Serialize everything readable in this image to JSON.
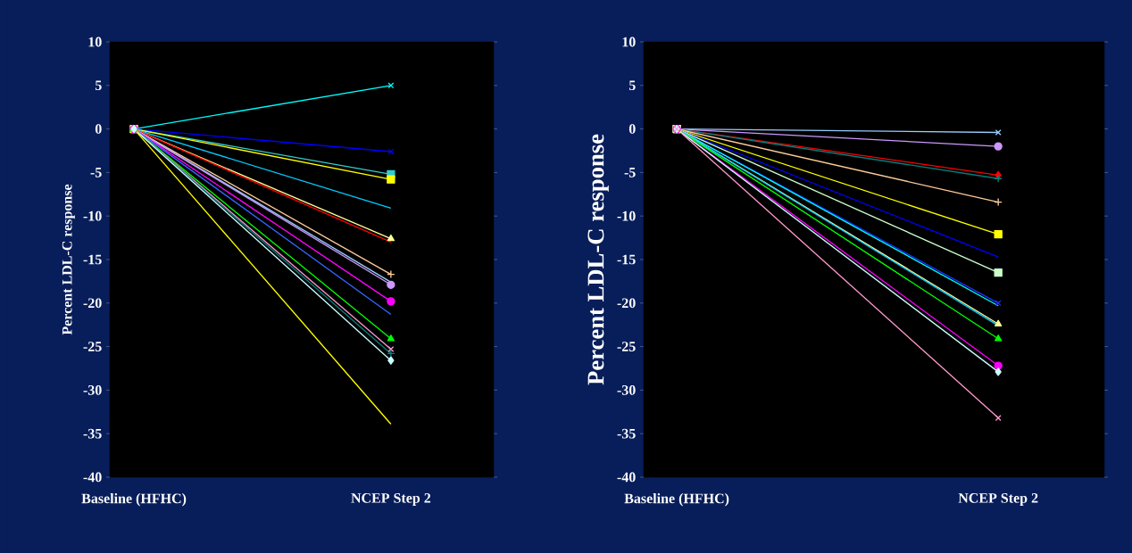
{
  "chart_data": [
    {
      "type": "line",
      "ylabel": "Percent LDL-C response",
      "categories": [
        "Baseline (HFHC)",
        "NCEP Step 2"
      ],
      "ylim": [
        -40,
        10
      ],
      "yticks": [
        -40,
        -35,
        -30,
        -25,
        -20,
        -15,
        -10,
        -5,
        0,
        5,
        10
      ],
      "series": [
        {
          "color": "#00ffff",
          "marker": "cross",
          "values": [
            0,
            5
          ]
        },
        {
          "color": "#0000ff",
          "marker": "cross",
          "values": [
            0,
            -2.6
          ]
        },
        {
          "color": "#33cccc",
          "marker": "square",
          "values": [
            0,
            -5.2
          ]
        },
        {
          "color": "#ffff00",
          "marker": "square",
          "values": [
            0,
            -5.8
          ]
        },
        {
          "color": "#00ccff",
          "marker": "none",
          "values": [
            0,
            -9.1
          ]
        },
        {
          "color": "#ffff99",
          "marker": "triangle",
          "values": [
            0,
            -12.6
          ]
        },
        {
          "color": "#ff0000",
          "marker": "none",
          "values": [
            0,
            -13.0
          ]
        },
        {
          "color": "#ffcc99",
          "marker": "plus",
          "values": [
            0,
            -16.7
          ]
        },
        {
          "color": "#99ccff",
          "marker": "none",
          "values": [
            0,
            -17.6
          ]
        },
        {
          "color": "#cc99ff",
          "marker": "circle",
          "values": [
            0,
            -17.9
          ]
        },
        {
          "color": "#ff00ff",
          "marker": "circle",
          "values": [
            0,
            -19.8
          ]
        },
        {
          "color": "#3366ff",
          "marker": "none",
          "values": [
            0,
            -21.3
          ]
        },
        {
          "color": "#00ff00",
          "marker": "triangle",
          "values": [
            0,
            -24.1
          ]
        },
        {
          "color": "#ff99cc",
          "marker": "cross",
          "values": [
            0,
            -25.3
          ]
        },
        {
          "color": "#008080",
          "marker": "plus",
          "values": [
            0,
            -25.8
          ]
        },
        {
          "color": "#ccffff",
          "marker": "diamond",
          "values": [
            0,
            -26.6
          ]
        },
        {
          "color": "#ffff00",
          "marker": "none",
          "values": [
            0,
            -33.9
          ]
        }
      ]
    },
    {
      "type": "line",
      "ylabel": "Percent LDL-C response",
      "categories": [
        "Baseline  (HFHC)",
        "NCEP Step 2"
      ],
      "ylim": [
        -40,
        10
      ],
      "yticks": [
        -40,
        -35,
        -30,
        -25,
        -20,
        -15,
        -10,
        -5,
        0,
        5,
        10
      ],
      "series": [
        {
          "color": "#99ccff",
          "marker": "cross",
          "values": [
            0,
            -0.4
          ]
        },
        {
          "color": "#cc99ff",
          "marker": "circle",
          "values": [
            0,
            -2.0
          ]
        },
        {
          "color": "#ff0000",
          "marker": "diamond",
          "values": [
            0,
            -5.3
          ]
        },
        {
          "color": "#008080",
          "marker": "plus",
          "values": [
            0,
            -5.7
          ]
        },
        {
          "color": "#ffcc99",
          "marker": "plus",
          "values": [
            0,
            -8.4
          ]
        },
        {
          "color": "#ffff00",
          "marker": "square",
          "values": [
            0,
            -12.1
          ]
        },
        {
          "color": "#0000ff",
          "marker": "none",
          "values": [
            0,
            -14.7
          ]
        },
        {
          "color": "#ccffcc",
          "marker": "square",
          "values": [
            0,
            -16.5
          ]
        },
        {
          "color": "#1a33ff",
          "marker": "cross",
          "values": [
            0,
            -20.0
          ]
        },
        {
          "color": "#00ffff",
          "marker": "none",
          "values": [
            0,
            -20.3
          ]
        },
        {
          "color": "#ffff99",
          "marker": "triangle",
          "values": [
            0,
            -22.4
          ]
        },
        {
          "color": "#00ccff",
          "marker": "none",
          "values": [
            0,
            -22.6
          ]
        },
        {
          "color": "#00ff00",
          "marker": "triangle",
          "values": [
            0,
            -24.1
          ]
        },
        {
          "color": "#ff00ff",
          "marker": "circle",
          "values": [
            0,
            -27.2
          ]
        },
        {
          "color": "#ccffff",
          "marker": "diamond",
          "values": [
            0,
            -27.9
          ]
        },
        {
          "color": "#ff99cc",
          "marker": "cross",
          "values": [
            0,
            -33.2
          ]
        }
      ]
    }
  ]
}
